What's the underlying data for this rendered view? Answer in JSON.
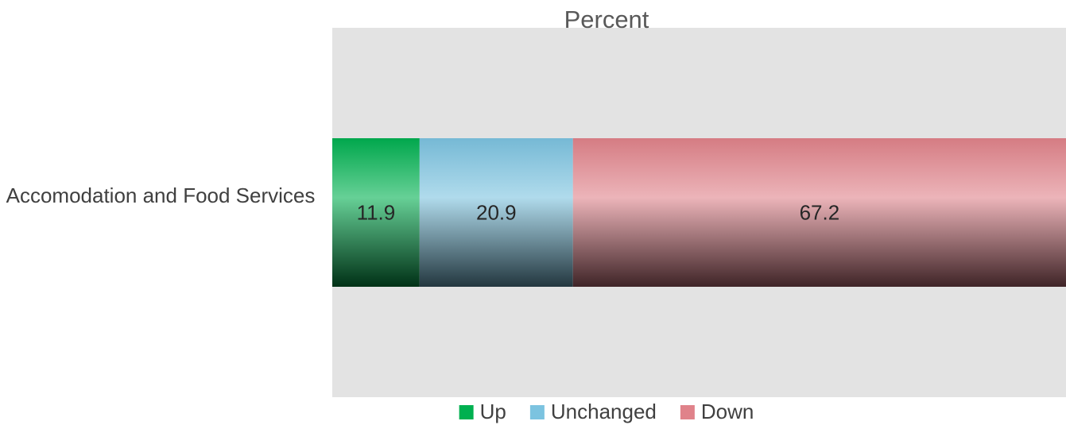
{
  "chart_data": {
    "type": "stacked-barh",
    "title": "Percent",
    "categories": [
      "Accomodation and Food Services"
    ],
    "series": [
      {
        "name": "Up",
        "color": "#00b050",
        "values": [
          11.9
        ]
      },
      {
        "name": "Unchanged",
        "color": "#7cc3e0",
        "values": [
          20.9
        ]
      },
      {
        "name": "Down",
        "color": "#e0828a",
        "values": [
          67.2
        ]
      }
    ],
    "xlim": [
      0,
      100
    ],
    "legend": "bottom"
  }
}
